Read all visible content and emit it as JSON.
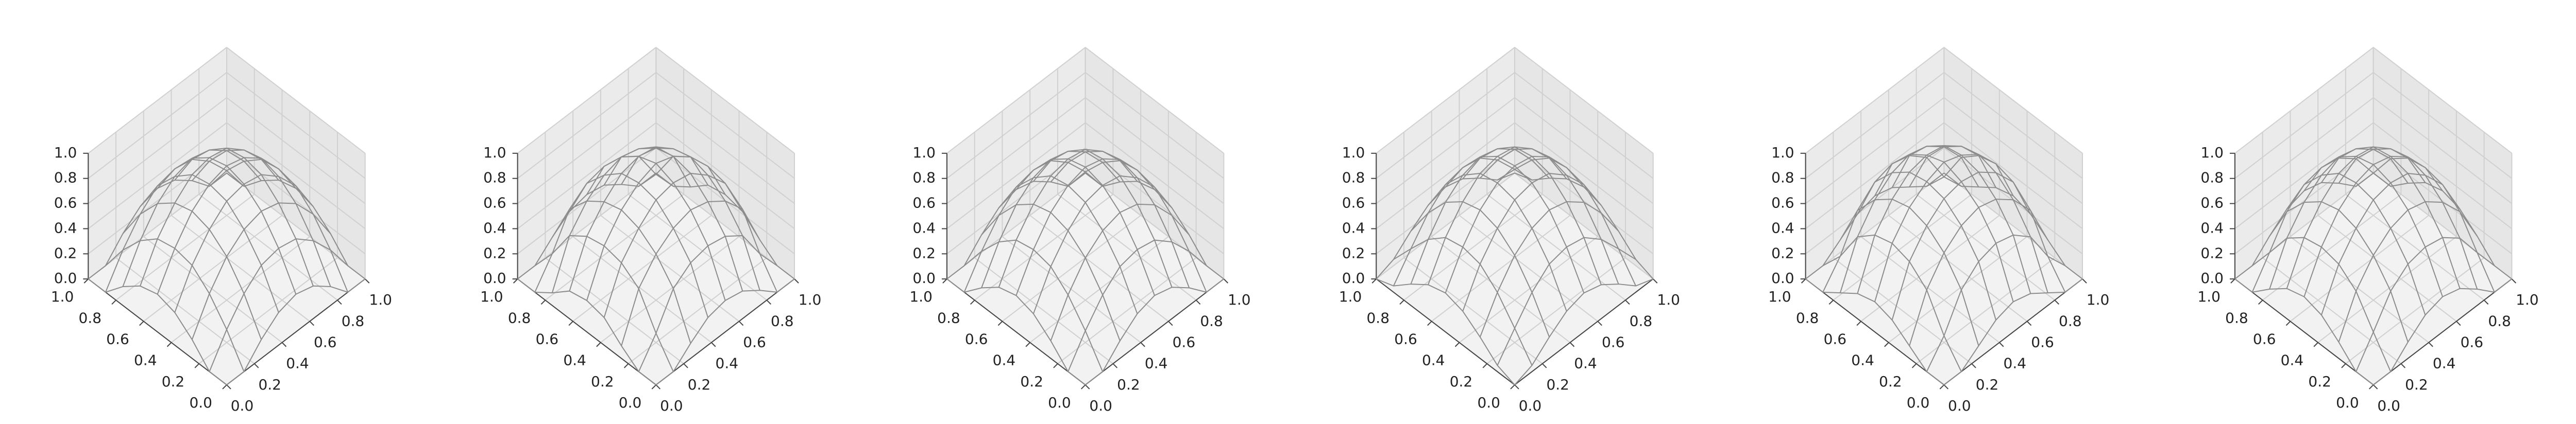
{
  "chart_data": [
    {
      "type": "wireframe",
      "color": "#8c8c8c",
      "x": [
        0,
        0.125,
        0.25,
        0.375,
        0.5,
        0.625,
        0.75,
        0.875,
        1
      ],
      "y": [
        0,
        0.125,
        0.25,
        0.375,
        0.5,
        0.625,
        0.75,
        0.875,
        1
      ],
      "z": [
        [
          0,
          0,
          0.15,
          0.26,
          0.3,
          0.26,
          0.15,
          0,
          0
        ],
        [
          0,
          0.23,
          0.41,
          0.53,
          0.56,
          0.53,
          0.41,
          0.23,
          0
        ],
        [
          0.15,
          0.41,
          0.6,
          0.71,
          0.75,
          0.71,
          0.6,
          0.41,
          0.15
        ],
        [
          0.26,
          0.53,
          0.71,
          0.83,
          0.86,
          0.83,
          0.71,
          0.53,
          0.26
        ],
        [
          0.3,
          0.56,
          0.75,
          0.86,
          0.9,
          0.86,
          0.75,
          0.56,
          0.3
        ],
        [
          0.26,
          0.53,
          0.71,
          0.83,
          0.86,
          0.83,
          0.71,
          0.53,
          0.26
        ],
        [
          0.15,
          0.41,
          0.6,
          0.71,
          0.75,
          0.71,
          0.6,
          0.41,
          0.15
        ],
        [
          0,
          0.23,
          0.41,
          0.53,
          0.56,
          0.53,
          0.41,
          0.23,
          0
        ],
        [
          0,
          0,
          0.15,
          0.26,
          0.3,
          0.26,
          0.15,
          0,
          0
        ]
      ],
      "xlim": [
        0,
        1
      ],
      "ylim": [
        0,
        1
      ],
      "zlim": [
        0,
        1
      ],
      "xticks": [
        {
          "value": 0,
          "label": "0.0"
        },
        0.2,
        0.4,
        0.6,
        0.8,
        {
          "value": 1,
          "label": "1.0"
        }
      ],
      "yticks": [
        {
          "value": 0,
          "label": "0.0"
        },
        0.2,
        0.4,
        0.6,
        0.8,
        {
          "value": 1,
          "label": "1.0"
        }
      ],
      "zticks": [
        {
          "value": 0,
          "label": "0.0"
        },
        0.2,
        0.4,
        0.6,
        0.8,
        {
          "value": 1,
          "label": "1.0"
        }
      ]
    },
    {
      "type": "wireframe",
      "color": "#8c8c8c",
      "x": [
        0,
        0.125,
        0.25,
        0.375,
        0.5,
        0.625,
        0.75,
        0.875,
        1
      ],
      "y": [
        0,
        0.125,
        0.25,
        0.375,
        0.5,
        0.625,
        0.75,
        0.875,
        1
      ],
      "z": [
        [
          0,
          0,
          0.12,
          0.22,
          0.25,
          0.22,
          0.12,
          0,
          0
        ],
        [
          0,
          0.2,
          0.45,
          0.55,
          0.58,
          0.55,
          0.45,
          0.2,
          0
        ],
        [
          0.1,
          0.45,
          0.62,
          0.72,
          0.76,
          0.72,
          0.62,
          0.45,
          0.1
        ],
        [
          0.22,
          0.55,
          0.72,
          0.84,
          0.87,
          0.84,
          0.72,
          0.55,
          0.22
        ],
        [
          0.25,
          0.58,
          0.76,
          0.87,
          0.92,
          0.87,
          0.76,
          0.58,
          0.25
        ],
        [
          0.22,
          0.55,
          0.72,
          0.84,
          0.87,
          0.84,
          0.72,
          0.55,
          0.22
        ],
        [
          0.1,
          0.45,
          0.62,
          0.72,
          0.76,
          0.72,
          0.62,
          0.45,
          0.1
        ],
        [
          0,
          0.2,
          0.45,
          0.55,
          0.58,
          0.55,
          0.45,
          0.2,
          0
        ],
        [
          0,
          0,
          0.12,
          0.22,
          0.25,
          0.22,
          0.12,
          0,
          0
        ]
      ],
      "xlim": [
        0,
        1
      ],
      "ylim": [
        0,
        1
      ],
      "zlim": [
        0,
        1
      ],
      "xticks": [
        {
          "value": 0,
          "label": "0.0"
        },
        0.2,
        0.4,
        0.6,
        0.8,
        {
          "value": 1,
          "label": "1.0"
        }
      ],
      "yticks": [
        {
          "value": 0,
          "label": "0.0"
        },
        0.2,
        0.4,
        0.6,
        0.8,
        {
          "value": 1,
          "label": "1.0"
        }
      ],
      "zticks": [
        {
          "value": 0,
          "label": "0.0"
        },
        0.2,
        0.4,
        0.6,
        0.8,
        {
          "value": 1,
          "label": "1.0"
        }
      ]
    },
    {
      "type": "wireframe",
      "color": "#8c8c8c",
      "x": [
        0,
        0.125,
        0.25,
        0.375,
        0.5,
        0.625,
        0.75,
        0.875,
        1
      ],
      "y": [
        0,
        0.125,
        0.25,
        0.375,
        0.5,
        0.625,
        0.75,
        0.875,
        1
      ],
      "z": [
        [
          0,
          0,
          0.14,
          0.25,
          0.29,
          0.25,
          0.14,
          0,
          0
        ],
        [
          0,
          0.22,
          0.4,
          0.52,
          0.55,
          0.52,
          0.4,
          0.22,
          0
        ],
        [
          0.14,
          0.4,
          0.59,
          0.7,
          0.74,
          0.7,
          0.59,
          0.4,
          0.14
        ],
        [
          0.25,
          0.52,
          0.7,
          0.82,
          0.85,
          0.82,
          0.7,
          0.52,
          0.25
        ],
        [
          0.29,
          0.55,
          0.74,
          0.85,
          0.89,
          0.85,
          0.74,
          0.55,
          0.29
        ],
        [
          0.25,
          0.52,
          0.7,
          0.82,
          0.85,
          0.82,
          0.7,
          0.52,
          0.25
        ],
        [
          0.14,
          0.4,
          0.59,
          0.7,
          0.74,
          0.7,
          0.59,
          0.4,
          0.14
        ],
        [
          0,
          0.22,
          0.4,
          0.52,
          0.55,
          0.52,
          0.4,
          0.22,
          0
        ],
        [
          0,
          0,
          0.14,
          0.25,
          0.29,
          0.25,
          0.14,
          0,
          0
        ]
      ],
      "xlim": [
        0,
        1
      ],
      "ylim": [
        0,
        1
      ],
      "zlim": [
        0,
        1
      ],
      "xticks": [
        {
          "value": 0,
          "label": "0.0"
        },
        0.2,
        0.4,
        0.6,
        0.8,
        {
          "value": 1,
          "label": "1.0"
        }
      ],
      "yticks": [
        {
          "value": 0,
          "label": "0.0"
        },
        0.2,
        0.4,
        0.6,
        0.8,
        {
          "value": 1,
          "label": "1.0"
        }
      ],
      "zticks": [
        {
          "value": 0,
          "label": "0.0"
        },
        0.2,
        0.4,
        0.6,
        0.8,
        {
          "value": 1,
          "label": "1.0"
        }
      ]
    },
    {
      "type": "wireframe",
      "color": "#8c8c8c",
      "x": [
        0,
        0.125,
        0.25,
        0.375,
        0.5,
        0.625,
        0.75,
        0.875,
        1
      ],
      "y": [
        0,
        0.125,
        0.25,
        0.375,
        0.5,
        0.625,
        0.75,
        0.875,
        1
      ],
      "z": [
        [
          0,
          0.05,
          0.17,
          0.27,
          0.31,
          0.27,
          0.17,
          0.05,
          0
        ],
        [
          0.05,
          0.24,
          0.42,
          0.54,
          0.57,
          0.54,
          0.42,
          0.24,
          0.05
        ],
        [
          0.17,
          0.42,
          0.61,
          0.72,
          0.76,
          0.72,
          0.61,
          0.42,
          0.17
        ],
        [
          0.27,
          0.54,
          0.72,
          0.84,
          0.87,
          0.84,
          0.72,
          0.54,
          0.27
        ],
        [
          0.31,
          0.57,
          0.76,
          0.87,
          0.9,
          0.87,
          0.76,
          0.57,
          0.31
        ],
        [
          0.27,
          0.54,
          0.72,
          0.84,
          0.87,
          0.84,
          0.72,
          0.54,
          0.27
        ],
        [
          0.17,
          0.42,
          0.61,
          0.72,
          0.76,
          0.72,
          0.61,
          0.42,
          0.17
        ],
        [
          0.05,
          0.24,
          0.42,
          0.54,
          0.57,
          0.54,
          0.42,
          0.24,
          0.05
        ],
        [
          0,
          0.05,
          0.17,
          0.27,
          0.31,
          0.27,
          0.17,
          0.05,
          0
        ]
      ],
      "xlim": [
        0,
        1
      ],
      "ylim": [
        0,
        1
      ],
      "zlim": [
        0,
        1
      ],
      "xticks": [
        {
          "value": 0,
          "label": "0.0"
        },
        0.2,
        0.4,
        0.6,
        0.8,
        {
          "value": 1,
          "label": "1.0"
        }
      ],
      "yticks": [
        {
          "value": 0,
          "label": "0.0"
        },
        0.2,
        0.4,
        0.6,
        0.8,
        {
          "value": 1,
          "label": "1.0"
        }
      ],
      "zticks": [
        {
          "value": 0,
          "label": "0.0"
        },
        0.2,
        0.4,
        0.6,
        0.8,
        {
          "value": 1,
          "label": "1.0"
        }
      ]
    },
    {
      "type": "wireframe",
      "color": "#8c8c8c",
      "x": [
        0,
        0.125,
        0.25,
        0.375,
        0.5,
        0.625,
        0.75,
        0.875,
        1
      ],
      "y": [
        0,
        0.125,
        0.25,
        0.375,
        0.5,
        0.625,
        0.75,
        0.875,
        1
      ],
      "z": [
        [
          0,
          0,
          0.1,
          0.2,
          0.24,
          0.2,
          0.1,
          0,
          0
        ],
        [
          0,
          0.18,
          0.44,
          0.56,
          0.6,
          0.56,
          0.44,
          0.18,
          0
        ],
        [
          0.1,
          0.44,
          0.63,
          0.74,
          0.78,
          0.74,
          0.63,
          0.44,
          0.1
        ],
        [
          0.2,
          0.56,
          0.74,
          0.85,
          0.88,
          0.85,
          0.74,
          0.56,
          0.2
        ],
        [
          0.24,
          0.6,
          0.78,
          0.88,
          0.93,
          0.88,
          0.78,
          0.6,
          0.24
        ],
        [
          0.2,
          0.56,
          0.74,
          0.85,
          0.88,
          0.85,
          0.74,
          0.56,
          0.2
        ],
        [
          0.1,
          0.44,
          0.63,
          0.74,
          0.78,
          0.74,
          0.63,
          0.44,
          0.1
        ],
        [
          0,
          0.18,
          0.44,
          0.56,
          0.6,
          0.56,
          0.44,
          0.18,
          0
        ],
        [
          0,
          0,
          0.1,
          0.2,
          0.24,
          0.2,
          0.1,
          0,
          0
        ]
      ],
      "xlim": [
        0,
        1
      ],
      "ylim": [
        0,
        1
      ],
      "zlim": [
        0,
        1
      ],
      "xticks": [
        {
          "value": 0,
          "label": "0.0"
        },
        0.2,
        0.4,
        0.6,
        0.8,
        {
          "value": 1,
          "label": "1.0"
        }
      ],
      "yticks": [
        {
          "value": 0,
          "label": "0.0"
        },
        0.2,
        0.4,
        0.6,
        0.8,
        {
          "value": 1,
          "label": "1.0"
        }
      ],
      "zticks": [
        {
          "value": 0,
          "label": "0.0"
        },
        0.2,
        0.4,
        0.6,
        0.8,
        {
          "value": 1,
          "label": "1.0"
        }
      ]
    },
    {
      "type": "wireframe",
      "color": "#8c8c8c",
      "x": [
        0,
        0.125,
        0.25,
        0.375,
        0.5,
        0.625,
        0.75,
        0.875,
        1
      ],
      "y": [
        0,
        0.125,
        0.25,
        0.375,
        0.5,
        0.625,
        0.75,
        0.875,
        1
      ],
      "z": [
        [
          0,
          0,
          0.13,
          0.24,
          0.28,
          0.24,
          0.13,
          0,
          0
        ],
        [
          0,
          0.21,
          0.43,
          0.54,
          0.57,
          0.54,
          0.43,
          0.21,
          0
        ],
        [
          0.13,
          0.43,
          0.61,
          0.72,
          0.76,
          0.72,
          0.61,
          0.43,
          0.13
        ],
        [
          0.24,
          0.54,
          0.72,
          0.84,
          0.87,
          0.84,
          0.72,
          0.54,
          0.24
        ],
        [
          0.28,
          0.57,
          0.76,
          0.87,
          0.91,
          0.87,
          0.76,
          0.57,
          0.28
        ],
        [
          0.24,
          0.54,
          0.72,
          0.84,
          0.87,
          0.84,
          0.72,
          0.54,
          0.24
        ],
        [
          0.13,
          0.43,
          0.61,
          0.72,
          0.76,
          0.72,
          0.61,
          0.43,
          0.13
        ],
        [
          0,
          0.21,
          0.43,
          0.54,
          0.57,
          0.54,
          0.43,
          0.21,
          0
        ],
        [
          0,
          0,
          0.13,
          0.24,
          0.28,
          0.24,
          0.13,
          0,
          0
        ]
      ],
      "xlim": [
        0,
        1
      ],
      "ylim": [
        0,
        1
      ],
      "zlim": [
        0,
        1
      ],
      "xticks": [
        {
          "value": 0,
          "label": "0.0"
        },
        0.2,
        0.4,
        0.6,
        0.8,
        {
          "value": 1,
          "label": "1.0"
        }
      ],
      "yticks": [
        {
          "value": 0,
          "label": "0.0"
        },
        0.2,
        0.4,
        0.6,
        0.8,
        {
          "value": 1,
          "label": "1.0"
        }
      ],
      "zticks": [
        {
          "value": 0,
          "label": "0.0"
        },
        0.2,
        0.4,
        0.6,
        0.8,
        {
          "value": 1,
          "label": "1.0"
        }
      ]
    }
  ]
}
